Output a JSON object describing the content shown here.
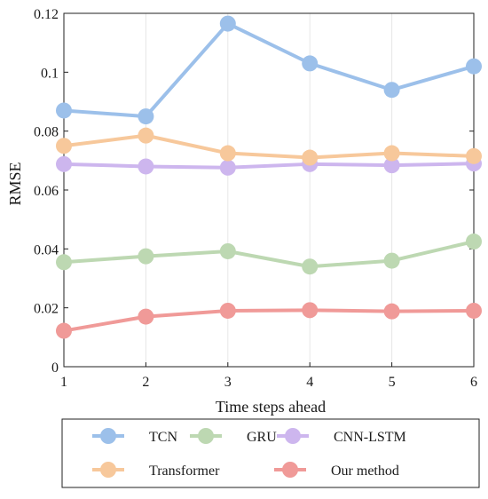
{
  "chart_data": {
    "type": "line",
    "xlabel": "Time steps ahead",
    "ylabel": "RMSE",
    "x": [
      1,
      2,
      3,
      4,
      5,
      6
    ],
    "xlim": [
      1,
      6
    ],
    "ylim": [
      0,
      0.12
    ],
    "xticks": [
      "1",
      "2",
      "3",
      "4",
      "5",
      "6"
    ],
    "yticks": [
      {
        "value": 0,
        "label": "0"
      },
      {
        "value": 0.02,
        "label": "0.02"
      },
      {
        "value": 0.04,
        "label": "0.04"
      },
      {
        "value": 0.06,
        "label": "0.06"
      },
      {
        "value": 0.08,
        "label": "0.08"
      },
      {
        "value": 0.1,
        "label": "0.1"
      },
      {
        "value": 0.12,
        "label": "0.12"
      }
    ],
    "grid": "vertical",
    "legend_position": "bottom-outside",
    "series": [
      {
        "name": "TCN",
        "color": "#9cc0ea",
        "values": [
          0.087,
          0.085,
          0.1165,
          0.103,
          0.094,
          0.102
        ]
      },
      {
        "name": "GRU",
        "color": "#bdd8b2",
        "values": [
          0.0355,
          0.0375,
          0.0392,
          0.034,
          0.036,
          0.0425
        ]
      },
      {
        "name": "CNN-LSTM",
        "color": "#cdb6ee",
        "values": [
          0.0688,
          0.068,
          0.0676,
          0.0688,
          0.0684,
          0.069
        ]
      },
      {
        "name": "Transformer",
        "color": "#f7c89b",
        "values": [
          0.075,
          0.0785,
          0.0725,
          0.071,
          0.0725,
          0.0715
        ]
      },
      {
        "name": "Our method",
        "color": "#f09a98",
        "values": [
          0.0122,
          0.017,
          0.019,
          0.0192,
          0.0188,
          0.019
        ]
      }
    ]
  }
}
